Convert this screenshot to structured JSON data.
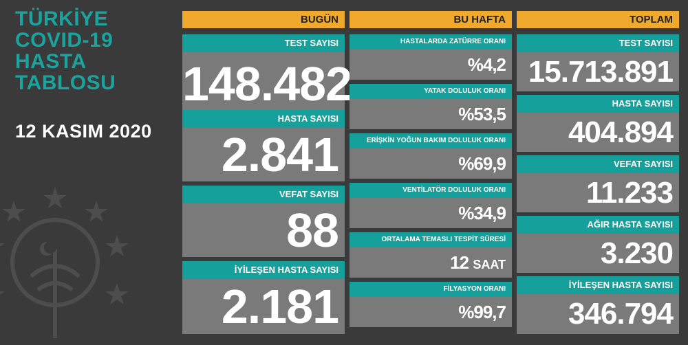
{
  "title": "TÜRKİYE\nCOVID-19\nHASTA\nTABLOSU",
  "date": "12 KASIM 2020",
  "today": {
    "header": "BUGÜN",
    "items": [
      {
        "label": "TEST SAYISI",
        "value": "148.482"
      },
      {
        "label": "HASTA SAYISI",
        "value": "2.841"
      },
      {
        "label": "VEFAT SAYISI",
        "value": "88"
      },
      {
        "label": "İYİLEŞEN HASTA SAYISI",
        "value": "2.181"
      }
    ]
  },
  "week": {
    "header": "BU HAFTA",
    "items": [
      {
        "label": "HASTALARDA ZATÜRRE ORANI",
        "value": "%4,2"
      },
      {
        "label": "YATAK DOLULUK ORANI",
        "value": "%53,5"
      },
      {
        "label": "ERİŞKİN YOĞUN BAKIM DOLULUK ORANI",
        "value": "%69,9"
      },
      {
        "label": "VENTİLATÖR DOLULUK ORANI",
        "value": "%34,9"
      },
      {
        "label": "ORTALAMA TEMASLI TESPİT SÜRESİ",
        "value": "12",
        "unit": "SAAT"
      },
      {
        "label": "FİLYASYON ORANI",
        "value": "%99,7"
      }
    ]
  },
  "total": {
    "header": "TOPLAM",
    "items": [
      {
        "label": "TEST SAYISI",
        "value": "15.713.891"
      },
      {
        "label": "HASTA SAYISI",
        "value": "404.894"
      },
      {
        "label": "VEFAT SAYISI",
        "value": "11.233"
      },
      {
        "label": "AĞIR HASTA SAYISI",
        "value": "3.230"
      },
      {
        "label": "İYİLEŞEN HASTA SAYISI",
        "value": "346.794"
      }
    ]
  },
  "colors": {
    "accent": "#1aa39f",
    "header": "#f0a92c",
    "card": "#7a7a7a",
    "background": "#3a3a3a"
  }
}
